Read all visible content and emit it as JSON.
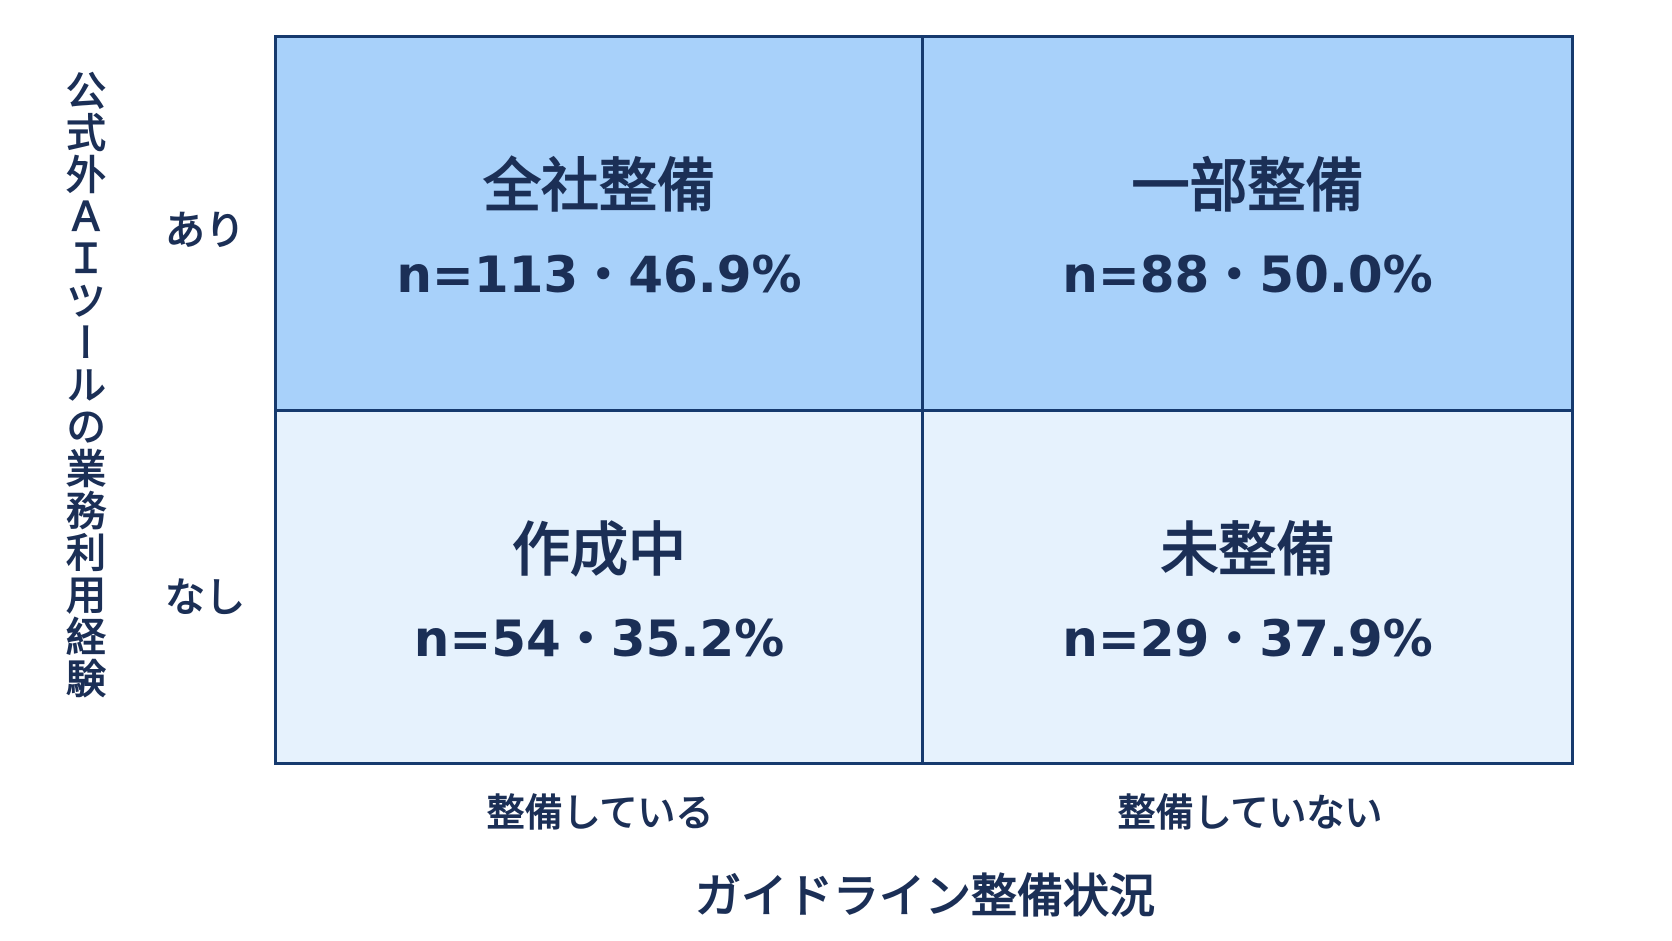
{
  "y_axis_title": "公式外ＡＩツールの業務利用経験",
  "x_axis_title": "ガイドライン整備状況",
  "rows": [
    "あり",
    "なし"
  ],
  "columns": [
    "整備している",
    "整備していない"
  ],
  "cells": [
    [
      {
        "label": "全社整備",
        "stat": "n=113・46.9%"
      },
      {
        "label": "一部整備",
        "stat": "n=88・50.0%"
      }
    ],
    [
      {
        "label": "作成中",
        "stat": "n=54・35.2%"
      },
      {
        "label": "未整備",
        "stat": "n=29・37.9%"
      }
    ]
  ]
}
